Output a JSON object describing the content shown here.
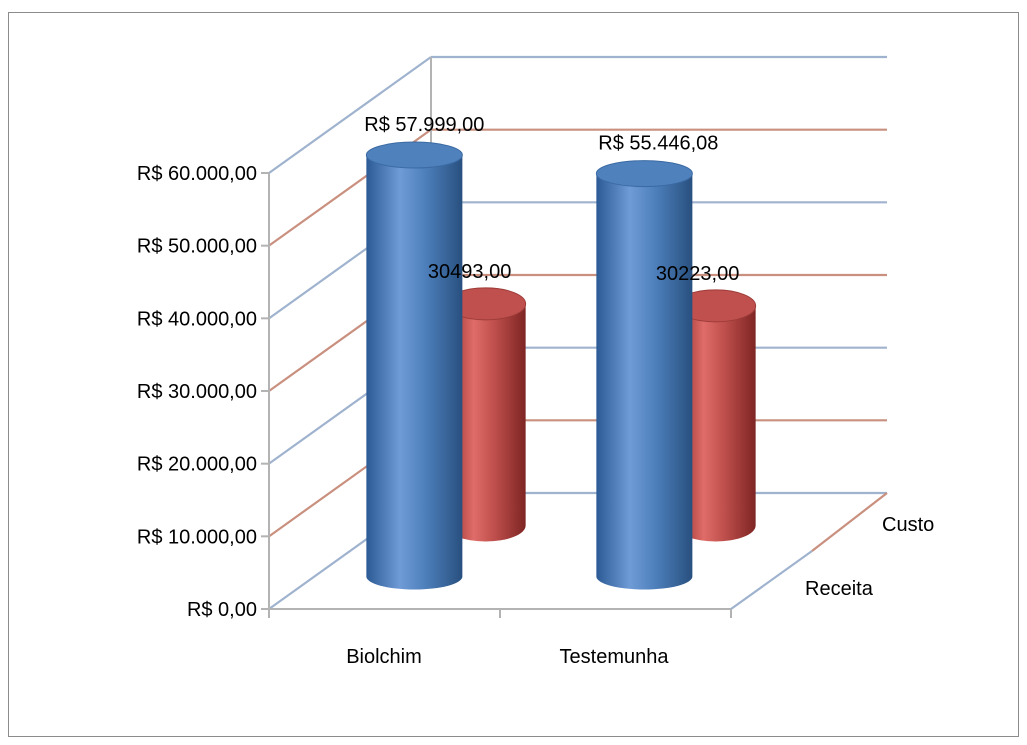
{
  "chart_data": {
    "type": "bar",
    "categories": [
      "Biolchim",
      "Testemunha"
    ],
    "depth_categories": [
      "Receita",
      "Custo"
    ],
    "series": [
      {
        "name": "Receita",
        "values": [
          57999.0,
          55446.08
        ],
        "labels": [
          "R$ 57.999,00",
          "R$ 55.446,08"
        ],
        "color": "#4f81bd"
      },
      {
        "name": "Custo",
        "values": [
          30493.0,
          30223.0
        ],
        "labels": [
          "30493,00",
          "30223,00"
        ],
        "color": "#c0504d"
      }
    ],
    "ylim": [
      0,
      60000
    ],
    "y_ticks": [
      {
        "value": 0,
        "label": "R$ 0,00"
      },
      {
        "value": 10000,
        "label": "R$ 10.000,00"
      },
      {
        "value": 20000,
        "label": "R$ 20.000,00"
      },
      {
        "value": 30000,
        "label": "R$ 30.000,00"
      },
      {
        "value": 40000,
        "label": "R$ 40.000,00"
      },
      {
        "value": 50000,
        "label": "R$ 50.000,00"
      },
      {
        "value": 60000,
        "label": "R$ 60.000,00"
      }
    ],
    "title": "",
    "xlabel": "",
    "ylabel": "",
    "grid": true,
    "chart_style": "3d-cylinder",
    "colors": {
      "receita": "#4f81bd",
      "custo": "#c0504d",
      "grid_blue": "#9fb3cf",
      "grid_red": "#c9907f"
    }
  }
}
